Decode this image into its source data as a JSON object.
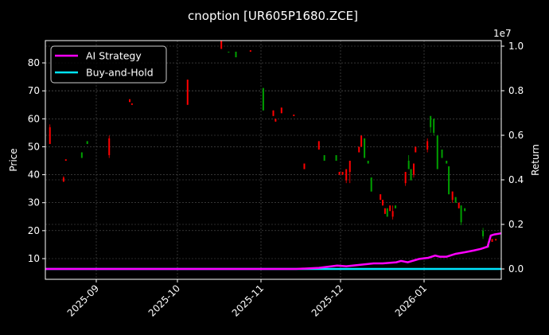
{
  "chart_data": {
    "type": "candlestick+line",
    "title": "cnoption [UR605P1680.ZCE]",
    "xlabel": "",
    "ylabel_left": "Price",
    "ylabel_right": "Return",
    "right_axis_offset_label": "1e7",
    "ylim_left": [
      3,
      88
    ],
    "ylim_right": [
      -0.02,
      1.02
    ],
    "yticks_left": [
      10,
      20,
      30,
      40,
      50,
      60,
      70,
      80
    ],
    "yticks_right": [
      "0.0",
      "0.2",
      "0.4",
      "0.6",
      "0.8",
      "1.0"
    ],
    "xticks": [
      "2025-09",
      "2025-10",
      "2025-11",
      "2025-12",
      "2026-01"
    ],
    "grid": true,
    "legend_position": "upper left",
    "colors": {
      "up": "#00a000",
      "down": "#ff0000",
      "ai": "#ff00ff",
      "bh": "#00e5ff",
      "background": "#000000",
      "grid": "#555555"
    },
    "legend": [
      {
        "label": "AI Strategy",
        "color": "#ff00ff"
      },
      {
        "label": "Buy-and-Hold",
        "color": "#00e5ff"
      }
    ],
    "candles": [
      {
        "x": 0.01,
        "o": 57,
        "c": 51,
        "h": 58,
        "l": 51
      },
      {
        "x": 0.04,
        "o": 39,
        "c": 37.5,
        "h": 39.5,
        "l": 37.5
      },
      {
        "x": 0.045,
        "o": 45.5,
        "c": 45,
        "h": 45.5,
        "l": 45
      },
      {
        "x": 0.08,
        "o": 46,
        "c": 48,
        "h": 48,
        "l": 46
      },
      {
        "x": 0.092,
        "o": 51,
        "c": 52,
        "h": 52,
        "l": 51
      },
      {
        "x": 0.14,
        "o": 53,
        "c": 47,
        "h": 54,
        "l": 46
      },
      {
        "x": 0.185,
        "o": 67,
        "c": 66,
        "h": 67,
        "l": 66
      },
      {
        "x": 0.19,
        "o": 65.5,
        "c": 65,
        "h": 65.5,
        "l": 65
      },
      {
        "x": 0.312,
        "o": 74,
        "c": 65,
        "h": 74,
        "l": 65
      },
      {
        "x": 0.386,
        "o": 88,
        "c": 85,
        "h": 88,
        "l": 85
      },
      {
        "x": 0.402,
        "o": 84,
        "c": 84,
        "h": 84,
        "l": 84
      },
      {
        "x": 0.418,
        "o": 82,
        "c": 84,
        "h": 84,
        "l": 82
      },
      {
        "x": 0.45,
        "o": 84.5,
        "c": 84,
        "h": 84.5,
        "l": 84
      },
      {
        "x": 0.478,
        "o": 63,
        "c": 71,
        "h": 71,
        "l": 63
      },
      {
        "x": 0.5,
        "o": 63,
        "c": 61,
        "h": 63,
        "l": 61
      },
      {
        "x": 0.505,
        "o": 60,
        "c": 59,
        "h": 60,
        "l": 59
      },
      {
        "x": 0.518,
        "o": 64,
        "c": 62,
        "h": 64,
        "l": 62
      },
      {
        "x": 0.545,
        "o": 61.5,
        "c": 61,
        "h": 61.5,
        "l": 61
      },
      {
        "x": 0.568,
        "o": 44,
        "c": 42,
        "h": 44,
        "l": 42
      },
      {
        "x": 0.6,
        "o": 52,
        "c": 49,
        "h": 52,
        "l": 49
      },
      {
        "x": 0.612,
        "o": 45,
        "c": 47,
        "h": 47,
        "l": 45
      },
      {
        "x": 0.638,
        "o": 45,
        "c": 47,
        "h": 47,
        "l": 45
      },
      {
        "x": 0.645,
        "o": 41,
        "c": 40,
        "h": 41,
        "l": 40
      },
      {
        "x": 0.652,
        "o": 41,
        "c": 40,
        "h": 41,
        "l": 40
      },
      {
        "x": 0.66,
        "o": 42,
        "c": 38,
        "h": 42,
        "l": 37
      },
      {
        "x": 0.668,
        "o": 45,
        "c": 41,
        "h": 45,
        "l": 37
      },
      {
        "x": 0.688,
        "o": 50,
        "c": 48,
        "h": 50,
        "l": 48
      },
      {
        "x": 0.693,
        "o": 54,
        "c": 50,
        "h": 54,
        "l": 50
      },
      {
        "x": 0.7,
        "o": 46,
        "c": 53,
        "h": 53,
        "l": 46
      },
      {
        "x": 0.708,
        "o": 44,
        "c": 45,
        "h": 45,
        "l": 44
      },
      {
        "x": 0.715,
        "o": 34,
        "c": 39,
        "h": 39,
        "l": 34
      },
      {
        "x": 0.735,
        "o": 33,
        "c": 31,
        "h": 33,
        "l": 31
      },
      {
        "x": 0.74,
        "o": 31,
        "c": 29,
        "h": 31,
        "l": 29
      },
      {
        "x": 0.745,
        "o": 28,
        "c": 26,
        "h": 28,
        "l": 26
      },
      {
        "x": 0.75,
        "o": 25,
        "c": 28,
        "h": 28,
        "l": 25
      },
      {
        "x": 0.756,
        "o": 29,
        "c": 27,
        "h": 29,
        "l": 27
      },
      {
        "x": 0.762,
        "o": 27,
        "c": 25,
        "h": 29,
        "l": 24
      },
      {
        "x": 0.768,
        "o": 28,
        "c": 29,
        "h": 29,
        "l": 28
      },
      {
        "x": 0.79,
        "o": 41,
        "c": 37,
        "h": 41,
        "l": 36
      },
      {
        "x": 0.797,
        "o": 42,
        "c": 45,
        "h": 47,
        "l": 42
      },
      {
        "x": 0.802,
        "o": 38,
        "c": 42,
        "h": 42,
        "l": 38
      },
      {
        "x": 0.808,
        "o": 44,
        "c": 40,
        "h": 44,
        "l": 39
      },
      {
        "x": 0.812,
        "o": 50,
        "c": 48,
        "h": 50,
        "l": 48
      },
      {
        "x": 0.838,
        "o": 52,
        "c": 49,
        "h": 53,
        "l": 48
      },
      {
        "x": 0.845,
        "o": 57,
        "c": 61,
        "h": 61,
        "l": 55
      },
      {
        "x": 0.852,
        "o": 55,
        "c": 60,
        "h": 60,
        "l": 54
      },
      {
        "x": 0.86,
        "o": 42,
        "c": 54,
        "h": 54,
        "l": 42
      },
      {
        "x": 0.87,
        "o": 46,
        "c": 49,
        "h": 49,
        "l": 46
      },
      {
        "x": 0.88,
        "o": 44,
        "c": 45,
        "h": 45,
        "l": 44
      },
      {
        "x": 0.885,
        "o": 33,
        "c": 43,
        "h": 43,
        "l": 33
      },
      {
        "x": 0.893,
        "o": 34,
        "c": 31,
        "h": 34,
        "l": 30
      },
      {
        "x": 0.9,
        "o": 30,
        "c": 32,
        "h": 32,
        "l": 30
      },
      {
        "x": 0.907,
        "o": 30,
        "c": 28,
        "h": 30,
        "l": 28
      },
      {
        "x": 0.912,
        "o": 23,
        "c": 29,
        "h": 29,
        "l": 22
      },
      {
        "x": 0.92,
        "o": 27,
        "c": 28,
        "h": 28,
        "l": 27
      },
      {
        "x": 0.96,
        "o": 18,
        "c": 20,
        "h": 21,
        "l": 17
      },
      {
        "x": 0.972,
        "o": 14,
        "c": 16,
        "h": 16,
        "l": 14
      },
      {
        "x": 0.98,
        "o": 17,
        "c": 16,
        "h": 17,
        "l": 16
      },
      {
        "x": 0.988,
        "o": 17,
        "c": 16.5,
        "h": 17,
        "l": 16.5
      }
    ],
    "series": [
      {
        "name": "AI Strategy",
        "points": [
          [
            0,
            0
          ],
          [
            0.55,
            0
          ],
          [
            0.6,
            0.005
          ],
          [
            0.64,
            0.015
          ],
          [
            0.66,
            0.012
          ],
          [
            0.72,
            0.025
          ],
          [
            0.74,
            0.025
          ],
          [
            0.77,
            0.03
          ],
          [
            0.78,
            0.036
          ],
          [
            0.795,
            0.03
          ],
          [
            0.82,
            0.045
          ],
          [
            0.84,
            0.05
          ],
          [
            0.855,
            0.06
          ],
          [
            0.865,
            0.055
          ],
          [
            0.88,
            0.055
          ],
          [
            0.9,
            0.068
          ],
          [
            0.92,
            0.075
          ],
          [
            0.94,
            0.083
          ],
          [
            0.955,
            0.09
          ],
          [
            0.97,
            0.1
          ],
          [
            0.977,
            0.15
          ],
          [
            0.985,
            0.155
          ],
          [
            1.0,
            0.16
          ]
        ]
      },
      {
        "name": "Buy-and-Hold",
        "points": [
          [
            0,
            0
          ],
          [
            1,
            0
          ]
        ]
      }
    ]
  }
}
